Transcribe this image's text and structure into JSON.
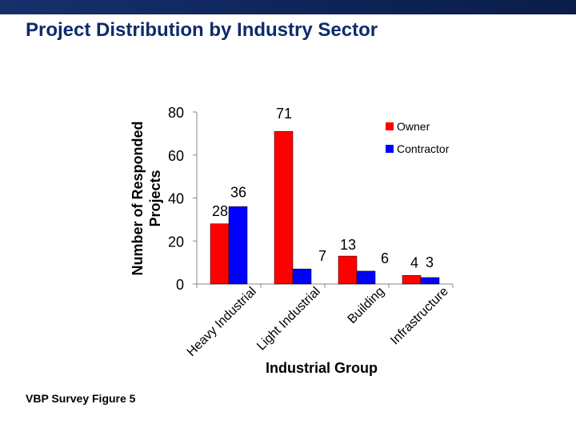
{
  "slide": {
    "title": "Project Distribution by Industry Sector",
    "footnote": "VBP Survey Figure 5"
  },
  "colors": {
    "header_bar": "#0d2458",
    "title": "#0d2b6b",
    "owner": "#ff0000",
    "contractor": "#0000ff"
  },
  "chart_data": {
    "type": "bar",
    "title": "",
    "xlabel": "Industrial Group",
    "ylabel": "Number of Responded Projects",
    "ylim": [
      0,
      80
    ],
    "yticks": [
      0,
      20,
      40,
      60,
      80
    ],
    "categories": [
      "Heavy Industrial",
      "Light Industrial",
      "Building",
      "Infrastructure"
    ],
    "series": [
      {
        "name": "Owner",
        "values": [
          28,
          71,
          13,
          4
        ]
      },
      {
        "name": "Contractor",
        "values": [
          36,
          7,
          6,
          3
        ]
      }
    ],
    "legend": "top-right",
    "grid": false
  }
}
